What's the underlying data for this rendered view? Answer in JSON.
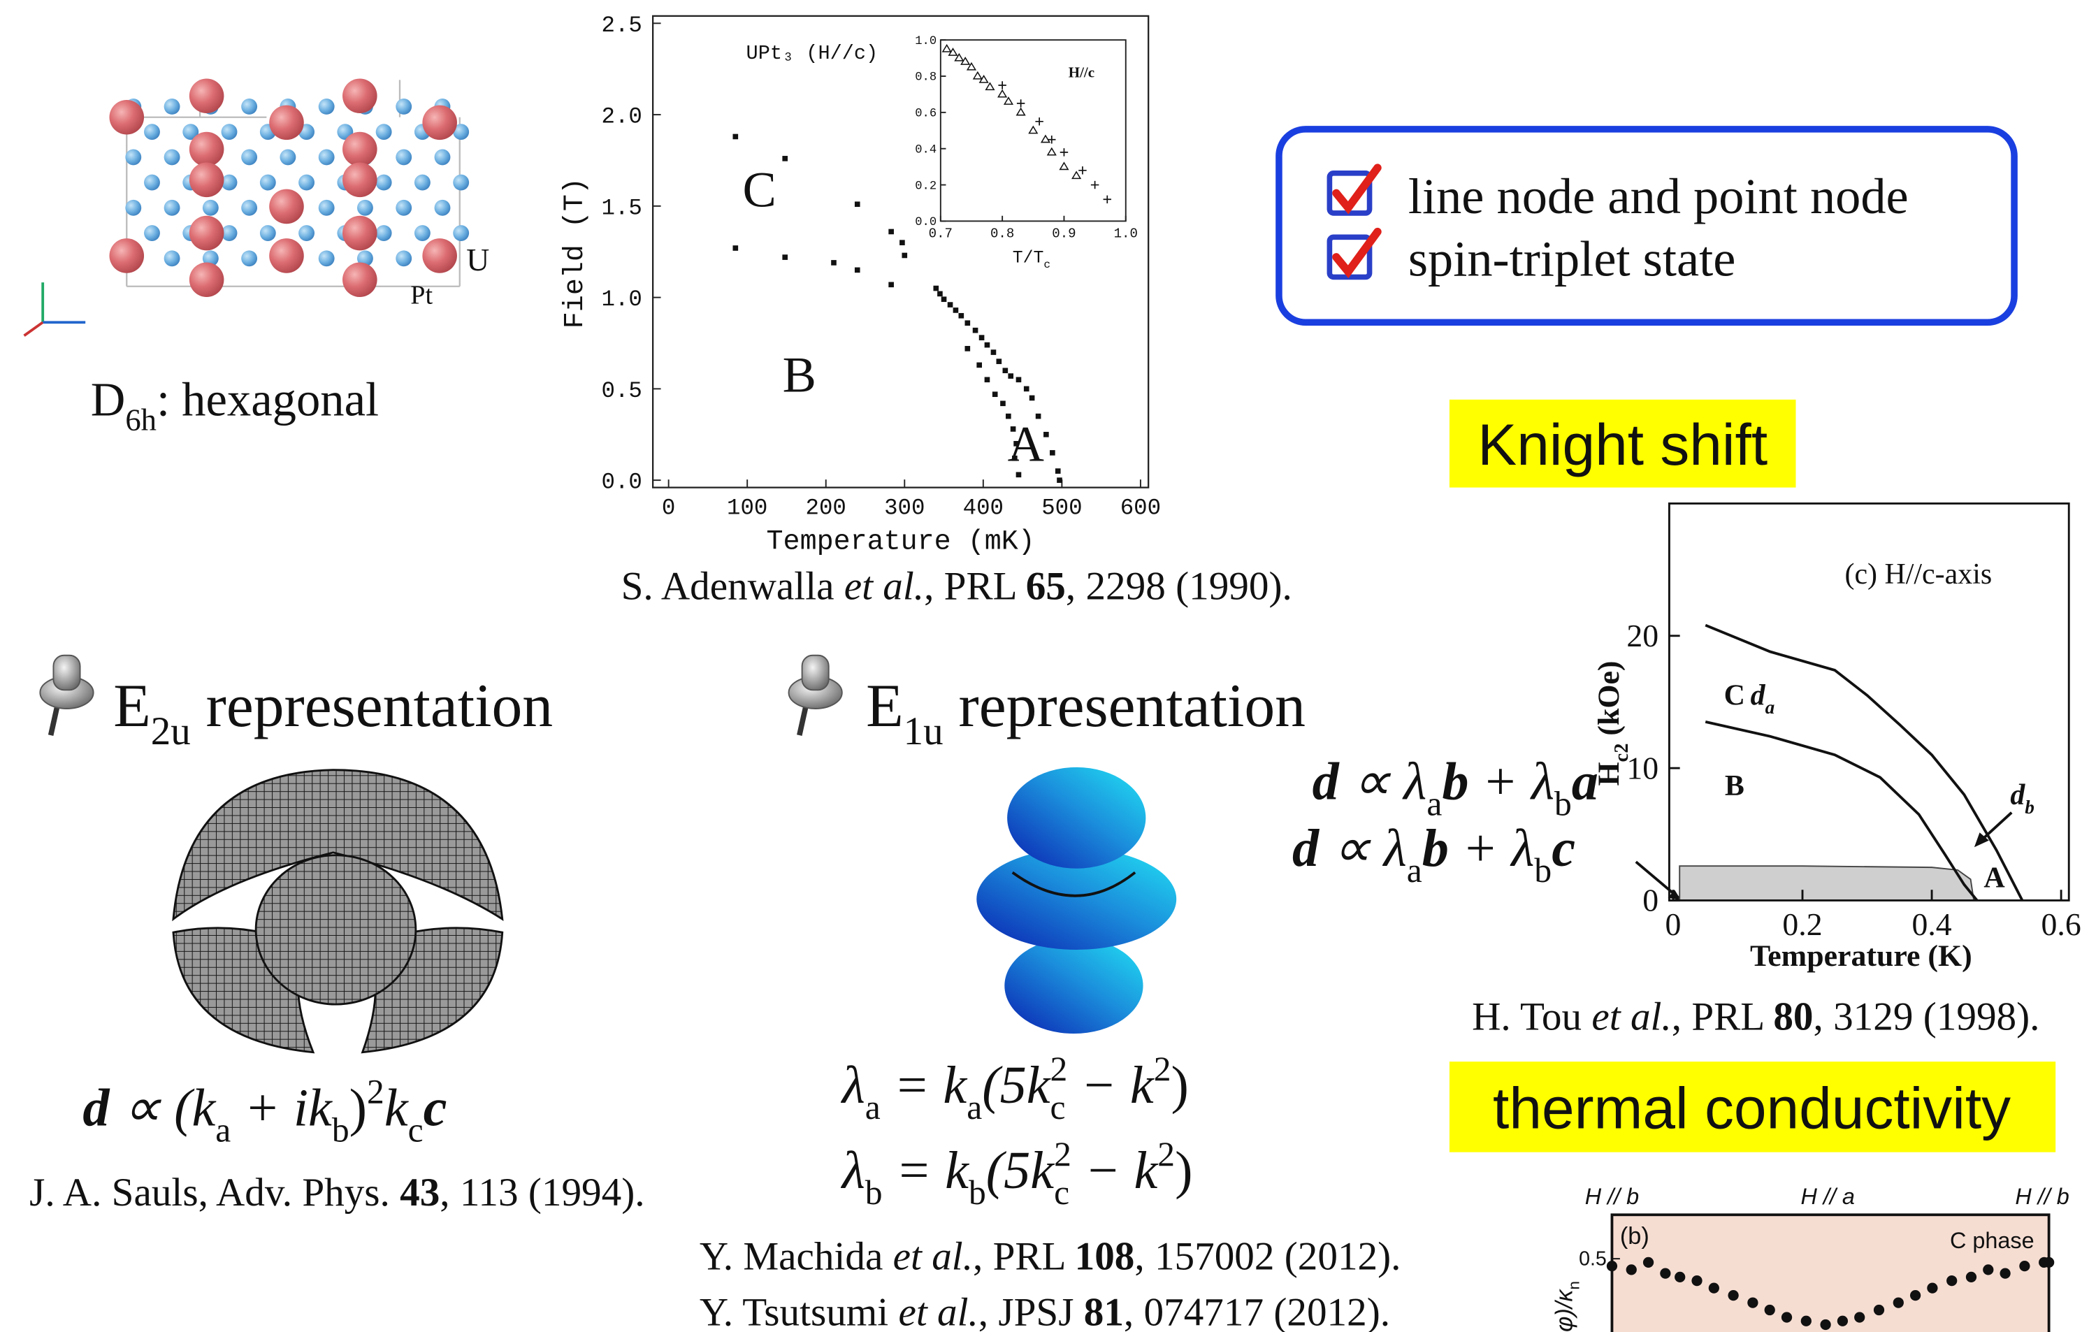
{
  "crystal": {
    "atom_labels": [
      "U",
      "Pt"
    ],
    "caption": [
      "D",
      "6h",
      ": hexagonal"
    ]
  },
  "phase_diagram": {
    "title": "UPt₃ (H//c)",
    "x_label": "Temperature (mK)",
    "y_label": "Field (T)",
    "xlim": [
      -20,
      610
    ],
    "ylim": [
      -0.04,
      2.54
    ],
    "xticks": [
      0,
      100,
      200,
      300,
      400,
      500,
      600
    ],
    "yticks": [
      {
        "value": 0,
        "label": "0.0"
      },
      0.5,
      {
        "value": 1,
        "label": "1.0"
      },
      1.5,
      {
        "value": 2,
        "label": "2.0"
      },
      2.5
    ],
    "phase_labels": [
      "C",
      "B",
      "A"
    ],
    "points": {
      "x": [
        85,
        148,
        240,
        283,
        297,
        85,
        148,
        210,
        240,
        283,
        300,
        340,
        345,
        350,
        358,
        365,
        372,
        380,
        390,
        398,
        405,
        413,
        420,
        428,
        435,
        445,
        455,
        462,
        470,
        480,
        488,
        495,
        380,
        395,
        405,
        415,
        425,
        432,
        438,
        442,
        440,
        445,
        497
      ],
      "y": [
        1.88,
        1.76,
        1.51,
        1.36,
        1.3,
        1.27,
        1.22,
        1.19,
        1.15,
        1.07,
        1.23,
        1.05,
        1.02,
        0.99,
        0.96,
        0.93,
        0.9,
        0.86,
        0.82,
        0.78,
        0.74,
        0.7,
        0.65,
        0.6,
        0.57,
        0.55,
        0.5,
        0.45,
        0.35,
        0.25,
        0.15,
        0.05,
        0.72,
        0.63,
        0.55,
        0.47,
        0.42,
        0.35,
        0.28,
        0.2,
        0.12,
        0.03,
        0
      ]
    },
    "inset": {
      "label": "H//c",
      "x_label": [
        "T/T",
        "c"
      ],
      "xlim": [
        0.7,
        1.0
      ],
      "ylim": [
        0,
        1.0
      ],
      "xticks": [
        0.7,
        0.8,
        0.9,
        {
          "value": 1,
          "label": "1.0"
        }
      ],
      "yticks": [
        {
          "value": 0,
          "label": "0.0"
        },
        0.2,
        0.4,
        0.6,
        0.8,
        {
          "value": 1,
          "label": "1.0"
        }
      ],
      "triangles": {
        "x": [
          0.71,
          0.72,
          0.73,
          0.74,
          0.75,
          0.76,
          0.77,
          0.78,
          0.8,
          0.81,
          0.83,
          0.85,
          0.87,
          0.88,
          0.9,
          0.92
        ],
        "y": [
          0.95,
          0.93,
          0.9,
          0.88,
          0.85,
          0.8,
          0.78,
          0.74,
          0.7,
          0.66,
          0.6,
          0.5,
          0.45,
          0.38,
          0.3,
          0.25
        ]
      },
      "crosses": {
        "x": [
          0.8,
          0.83,
          0.86,
          0.88,
          0.9,
          0.93,
          0.95,
          0.97
        ],
        "y": [
          0.75,
          0.65,
          0.55,
          0.45,
          0.38,
          0.28,
          0.2,
          0.12
        ]
      }
    }
  },
  "phase_citation": [
    "S. Adenwalla ",
    "et al.",
    ", PRL ",
    "65",
    ", 2298 (1990)."
  ],
  "checklist": [
    "line node and point node",
    "spin-triplet state"
  ],
  "knight_shift": "Knight shift",
  "tou_figure": {
    "panel_label": "(c) H//c-axis",
    "y_label": [
      "H",
      "c2",
      " (kOe)"
    ],
    "x_label": "Temperature (K)",
    "xlim": [
      -0.006,
      0.612
    ],
    "ylim": [
      0,
      30
    ],
    "xticks": [
      0,
      0.2,
      0.4,
      0.6
    ],
    "yticks": [
      0,
      10,
      20
    ],
    "phase_labels": [
      "C",
      "B",
      "A"
    ],
    "line_labels": [
      [
        "d",
        "a"
      ],
      [
        "d",
        "b"
      ]
    ],
    "curves": [
      {
        "x": [
          0.05,
          0.15,
          0.25,
          0.3,
          0.35,
          0.4,
          0.45,
          0.5,
          0.54
        ],
        "y": [
          20.8,
          18.8,
          17.4,
          15.5,
          13.3,
          11,
          8,
          3.8,
          0
        ]
      },
      {
        "x": [
          0.05,
          0.15,
          0.25,
          0.32,
          0.38,
          0.42,
          0.45,
          0.47
        ],
        "y": [
          13.5,
          12.4,
          11,
          9.3,
          6.5,
          3.5,
          1.2,
          0
        ]
      }
    ],
    "shaded": {
      "x": [
        0.01,
        0.2,
        0.4,
        0.44,
        0.46,
        0.465
      ],
      "y": [
        2.6,
        2.6,
        2.5,
        2.3,
        1.6,
        0
      ]
    }
  },
  "tou_citation": [
    "H. Tou ",
    "et al.",
    ", PRL ",
    "80",
    ", 3129 (1998)."
  ],
  "thermal_conductivity": "thermal conductivity",
  "kappa_figure": {
    "field_labels": [
      "H // b",
      "H // a",
      "H // b"
    ],
    "panel_label": "(b)",
    "phase": "C phase",
    "y_label": [
      "φ)/κ",
      "n"
    ],
    "xlim": [
      0,
      180
    ],
    "ylim": [
      0.3,
      0.62
    ],
    "yticks": [
      0.5
    ],
    "points": {
      "x": [
        0,
        8,
        15,
        22,
        28,
        35,
        42,
        50,
        58,
        65,
        72,
        80,
        88,
        95,
        102,
        110,
        118,
        125,
        132,
        140,
        148,
        155,
        162,
        170,
        178,
        180
      ],
      "y": [
        0.48,
        0.47,
        0.49,
        0.46,
        0.45,
        0.44,
        0.42,
        0.4,
        0.38,
        0.36,
        0.34,
        0.33,
        0.32,
        0.33,
        0.34,
        0.36,
        0.38,
        0.4,
        0.42,
        0.44,
        0.45,
        0.47,
        0.46,
        0.48,
        0.49,
        0.49
      ]
    }
  },
  "e2u": {
    "heading": [
      "E",
      "2u",
      " representation"
    ],
    "formula": [
      "d",
      " ∝ (k",
      "a",
      " + ik",
      "b",
      ")",
      "2",
      "k",
      "c",
      "c"
    ],
    "citation": [
      "J. A. Sauls, Adv. Phys. ",
      "43",
      ", 113 (1994)."
    ]
  },
  "e1u": {
    "heading": [
      "E",
      "1u",
      " representation"
    ],
    "formulas": [
      [
        "λ",
        "a",
        " = k",
        "a",
        "(5k",
        "c",
        "2",
        " − k",
        "2",
        ")"
      ],
      [
        "λ",
        "b",
        " = k",
        "b",
        "(5k",
        "c",
        "2",
        " − k",
        "2",
        ")"
      ]
    ],
    "citations": [
      [
        "Y. Machida ",
        "et al.",
        ", PRL ",
        "108",
        ", 157002 (2012)."
      ],
      [
        "Y. Tsutsumi ",
        "et al.",
        ", JPSJ ",
        "81",
        ", 074717 (2012)."
      ]
    ]
  },
  "d_vectors": [
    [
      "d",
      " ∝ λ",
      "a",
      "b",
      " + λ",
      "b",
      "a"
    ],
    [
      "d",
      " ∝ λ",
      "a",
      "b",
      " + λ",
      "b",
      "c"
    ]
  ]
}
